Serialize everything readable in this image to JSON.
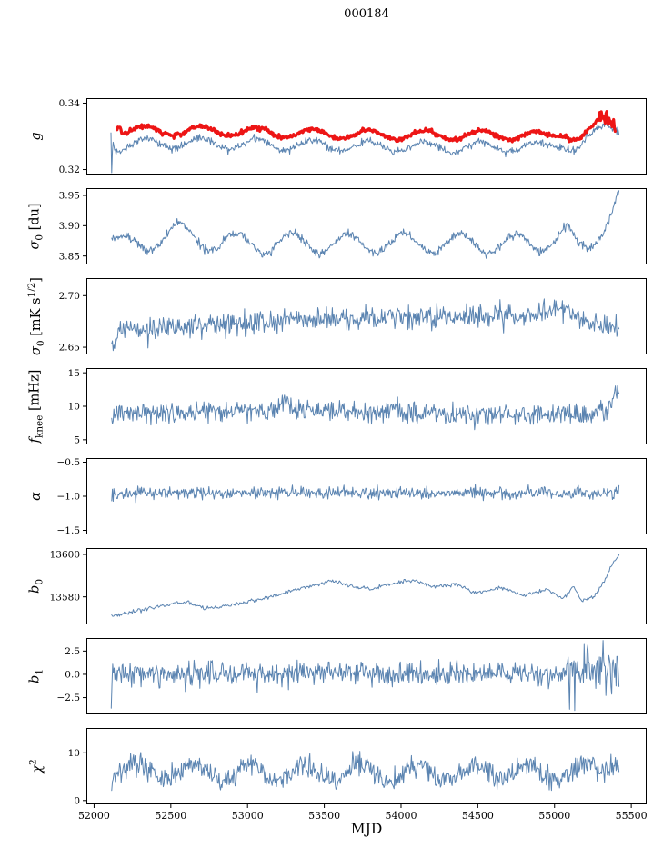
{
  "figure": {
    "title": "000184",
    "xlabel": "MJD"
  },
  "chart_data": {
    "type": "line",
    "title": "000184",
    "xlabel": "MJD",
    "x_range": [
      51950,
      55600
    ],
    "x_ticks": [
      {
        "v": 52000,
        "l": "52000"
      },
      {
        "v": 52500,
        "l": "52500"
      },
      {
        "v": 53000,
        "l": "53000"
      },
      {
        "v": 53500,
        "l": "53500"
      },
      {
        "v": 54000,
        "l": "54000"
      },
      {
        "v": 54500,
        "l": "54500"
      },
      {
        "v": 55000,
        "l": "55000"
      },
      {
        "v": 55500,
        "l": "55500"
      }
    ],
    "line_color": "#5b84b1",
    "highlight_color": "#ed1515",
    "frame_color": "#000000",
    "panels": [
      {
        "name": "g",
        "label_text": "g",
        "label_parts": [
          {
            "t": "g",
            "i": 1
          }
        ],
        "ylim": [
          0.3185,
          0.3415
        ],
        "yticks": [
          {
            "v": 0.32,
            "l": "0.32"
          },
          {
            "v": 0.34,
            "l": "0.34"
          }
        ],
        "series": [
          {
            "name": "g-gain",
            "color": "#5b84b1",
            "width": 1,
            "seed": 11,
            "n": 700,
            "x0": 52110,
            "x1": 55420,
            "noise": 0.00055,
            "osc": {
              "amp": 0.0016,
              "period": 365,
              "x_peak": 52330
            },
            "trend": [
              [
                52110,
                0.332
              ],
              [
                52114,
                0.32
              ],
              [
                52122,
                0.33
              ],
              [
                52140,
                0.3268
              ],
              [
                52300,
                0.328
              ],
              [
                52700,
                0.3279
              ],
              [
                53200,
                0.3275
              ],
              [
                53700,
                0.327
              ],
              [
                54200,
                0.3267
              ],
              [
                54700,
                0.327
              ],
              [
                54950,
                0.3266
              ],
              [
                55060,
                0.3284
              ],
              [
                55110,
                0.3268
              ],
              [
                55160,
                0.3263
              ],
              [
                55250,
                0.3298
              ],
              [
                55320,
                0.3329
              ],
              [
                55380,
                0.3331
              ],
              [
                55420,
                0.3324
              ]
            ],
            "noise_zones": [
              [
                55100,
                55420,
                1.6
              ]
            ]
          },
          {
            "name": "g-smoothed",
            "color": "#ed1515",
            "width": 3.2,
            "seed": 22,
            "n": 650,
            "x0": 52150,
            "x1": 55395,
            "noise": 0.00032,
            "osc": {
              "amp": 0.0014,
              "period": 365,
              "x_peak": 52330
            },
            "trend": [
              [
                52150,
                0.3338
              ],
              [
                52163,
                0.3352
              ],
              [
                52185,
                0.3318
              ],
              [
                52400,
                0.3316
              ],
              [
                52700,
                0.3317
              ],
              [
                53200,
                0.3311
              ],
              [
                53700,
                0.3306
              ],
              [
                54200,
                0.3303
              ],
              [
                54700,
                0.3305
              ],
              [
                54950,
                0.3299
              ],
              [
                55060,
                0.3317
              ],
              [
                55110,
                0.3299
              ],
              [
                55170,
                0.3294
              ],
              [
                55250,
                0.3318
              ],
              [
                55300,
                0.3355
              ],
              [
                55330,
                0.3348
              ],
              [
                55355,
                0.3363
              ],
              [
                55395,
                0.3329
              ]
            ],
            "noise_zones": [
              [
                55280,
                55420,
                3.0
              ]
            ]
          }
        ]
      },
      {
        "name": "sigma0-du",
        "label_text": "σ0 [du]",
        "label_parts": [
          {
            "t": "σ",
            "i": 1
          },
          {
            "t": "0",
            "s": "sub"
          },
          {
            "t": " [du]"
          }
        ],
        "ylim": [
          3.836,
          3.962
        ],
        "yticks": [
          {
            "v": 3.85,
            "l": "3.85"
          },
          {
            "v": 3.9,
            "l": "3.90"
          },
          {
            "v": 3.95,
            "l": "3.95"
          }
        ],
        "series": [
          {
            "name": "sigma0-du",
            "color": "#5b84b1",
            "width": 1,
            "seed": 33,
            "n": 700,
            "x0": 52115,
            "x1": 55420,
            "noise": 0.0035,
            "osc": {
              "amp": 0.016,
              "period": 365,
              "x_peak": 52560
            },
            "trend": [
              [
                52115,
                3.873
              ],
              [
                52140,
                3.868
              ],
              [
                52250,
                3.866
              ],
              [
                52550,
                3.89
              ],
              [
                52800,
                3.872
              ],
              [
                53100,
                3.871
              ],
              [
                54900,
                3.87
              ],
              [
                55080,
                3.888
              ],
              [
                55150,
                3.861
              ],
              [
                55220,
                3.866
              ],
              [
                55320,
                3.904
              ],
              [
                55420,
                3.95
              ]
            ]
          }
        ]
      },
      {
        "name": "sigma0-mks",
        "label_text": "σ0 [mK s1/2]",
        "label_parts": [
          {
            "t": "σ",
            "i": 1
          },
          {
            "t": "0",
            "s": "sub"
          },
          {
            "t": " [mK s"
          },
          {
            "t": "1/2",
            "s": "sup"
          },
          {
            "t": "]"
          }
        ],
        "ylim": [
          2.643,
          2.717
        ],
        "yticks": [
          {
            "v": 2.65,
            "l": "2.65"
          },
          {
            "v": 2.7,
            "l": "2.70"
          }
        ],
        "series": [
          {
            "name": "sigma0-mks",
            "color": "#5b84b1",
            "width": 1,
            "seed": 44,
            "n": 700,
            "x0": 52115,
            "x1": 55420,
            "noise": 0.0055,
            "trend": [
              [
                52115,
                2.656
              ],
              [
                52128,
                2.648
              ],
              [
                52160,
                2.667
              ],
              [
                52400,
                2.668
              ],
              [
                52700,
                2.672
              ],
              [
                53300,
                2.676
              ],
              [
                54000,
                2.679
              ],
              [
                54600,
                2.68
              ],
              [
                54900,
                2.683
              ],
              [
                55050,
                2.689
              ],
              [
                55150,
                2.679
              ],
              [
                55300,
                2.671
              ],
              [
                55420,
                2.672
              ]
            ]
          }
        ]
      },
      {
        "name": "fknee",
        "label_text": "fknee [mHz]",
        "label_parts": [
          {
            "t": "f",
            "i": 1
          },
          {
            "t": "knee",
            "s": "sub"
          },
          {
            "t": " [mHz]"
          }
        ],
        "ylim": [
          4.3,
          15.7
        ],
        "yticks": [
          {
            "v": 5,
            "l": "5"
          },
          {
            "v": 10,
            "l": "10"
          },
          {
            "v": 15,
            "l": "15"
          }
        ],
        "series": [
          {
            "name": "fknee",
            "color": "#5b84b1",
            "width": 1,
            "seed": 55,
            "n": 700,
            "x0": 52115,
            "x1": 55420,
            "noise": 0.75,
            "trend": [
              [
                52115,
                8.6
              ],
              [
                52160,
                9.2
              ],
              [
                52400,
                9.0
              ],
              [
                53150,
                9.2
              ],
              [
                53230,
                10.6
              ],
              [
                53320,
                9.4
              ],
              [
                54000,
                9.1
              ],
              [
                54500,
                8.8
              ],
              [
                55000,
                8.8
              ],
              [
                55340,
                8.9
              ],
              [
                55385,
                11.0
              ],
              [
                55420,
                12.3
              ]
            ]
          }
        ]
      },
      {
        "name": "alpha",
        "label_text": "α",
        "label_parts": [
          {
            "t": "α",
            "i": 1
          }
        ],
        "ylim": [
          -1.56,
          -0.44
        ],
        "yticks": [
          {
            "v": -1.5,
            "l": "−1.5"
          },
          {
            "v": -1.0,
            "l": "−1.0"
          },
          {
            "v": -0.5,
            "l": "−0.5"
          }
        ],
        "series": [
          {
            "name": "alpha",
            "color": "#5b84b1",
            "width": 1,
            "seed": 66,
            "n": 700,
            "x0": 52115,
            "x1": 55420,
            "noise": 0.042,
            "trend": [
              [
                52115,
                -0.96
              ],
              [
                52200,
                -0.95
              ],
              [
                55300,
                -0.95
              ],
              [
                55420,
                -0.94
              ]
            ]
          }
        ]
      },
      {
        "name": "b0",
        "label_text": "b0",
        "label_parts": [
          {
            "t": "b",
            "i": 1
          },
          {
            "t": "0",
            "s": "sub"
          }
        ],
        "ylim": [
          13567,
          13603
        ],
        "yticks": [
          {
            "v": 13580,
            "l": "13580"
          },
          {
            "v": 13600,
            "l": "13600"
          }
        ],
        "series": [
          {
            "name": "b0",
            "color": "#5b84b1",
            "width": 1,
            "seed": 77,
            "n": 520,
            "x0": 52115,
            "x1": 55420,
            "noise": 0.45,
            "trend": [
              [
                52115,
                13571.5
              ],
              [
                52200,
                13572
              ],
              [
                52350,
                13574.5
              ],
              [
                52500,
                13576.5
              ],
              [
                52600,
                13577.5
              ],
              [
                52720,
                13574.5
              ],
              [
                52900,
                13576
              ],
              [
                53050,
                13578.5
              ],
              [
                53200,
                13581
              ],
              [
                53400,
                13585
              ],
              [
                53550,
                13587.5
              ],
              [
                53650,
                13585.5
              ],
              [
                53800,
                13583.5
              ],
              [
                53950,
                13586.5
              ],
              [
                54080,
                13588
              ],
              [
                54200,
                13584.5
              ],
              [
                54350,
                13586
              ],
              [
                54500,
                13581.5
              ],
              [
                54650,
                13584.5
              ],
              [
                54800,
                13580.5
              ],
              [
                54950,
                13583.5
              ],
              [
                55060,
                13579
              ],
              [
                55120,
                13585
              ],
              [
                55180,
                13578
              ],
              [
                55260,
                13580
              ],
              [
                55340,
                13590
              ],
              [
                55390,
                13597
              ],
              [
                55420,
                13600
              ]
            ]
          }
        ]
      },
      {
        "name": "b1",
        "label_text": "b1",
        "label_parts": [
          {
            "t": "b",
            "i": 1
          },
          {
            "t": "1",
            "s": "sub"
          }
        ],
        "ylim": [
          -4.3,
          3.9
        ],
        "yticks": [
          {
            "v": -2.5,
            "l": "−2.5"
          },
          {
            "v": 0,
            "l": "0.0"
          },
          {
            "v": 2.5,
            "l": "2.5"
          }
        ],
        "series": [
          {
            "name": "b1",
            "color": "#5b84b1",
            "width": 1,
            "seed": 88,
            "n": 700,
            "x0": 52112,
            "x1": 55420,
            "noise": 0.62,
            "trend": [
              [
                52112,
                -3.2
              ],
              [
                52118,
                0.4
              ],
              [
                52140,
                0.1
              ],
              [
                55050,
                0.1
              ],
              [
                55150,
                0.2
              ],
              [
                55420,
                0.0
              ]
            ],
            "noise_zones": [
              [
                55080,
                55420,
                2.3
              ]
            ]
          }
        ]
      },
      {
        "name": "chi2",
        "label_text": "χ2",
        "label_parts": [
          {
            "t": "χ",
            "i": 1
          },
          {
            "t": "2",
            "s": "sup"
          }
        ],
        "ylim": [
          -0.8,
          15.2
        ],
        "yticks": [
          {
            "v": 0,
            "l": "0"
          },
          {
            "v": 10,
            "l": "10"
          }
        ],
        "series": [
          {
            "name": "chi2",
            "color": "#5b84b1",
            "width": 1,
            "seed": 99,
            "n": 700,
            "x0": 52115,
            "x1": 55420,
            "noise": 1.15,
            "osc": {
              "amp": 1.7,
              "period": 365,
              "x_peak": 52280
            },
            "trend": [
              [
                52115,
                5.2
              ],
              [
                52130,
                6.3
              ],
              [
                53000,
                5.8
              ],
              [
                54000,
                5.8
              ],
              [
                55200,
                6.0
              ],
              [
                55320,
                6.5
              ],
              [
                55380,
                9.0
              ],
              [
                55420,
                7.5
              ]
            ]
          }
        ]
      }
    ]
  }
}
